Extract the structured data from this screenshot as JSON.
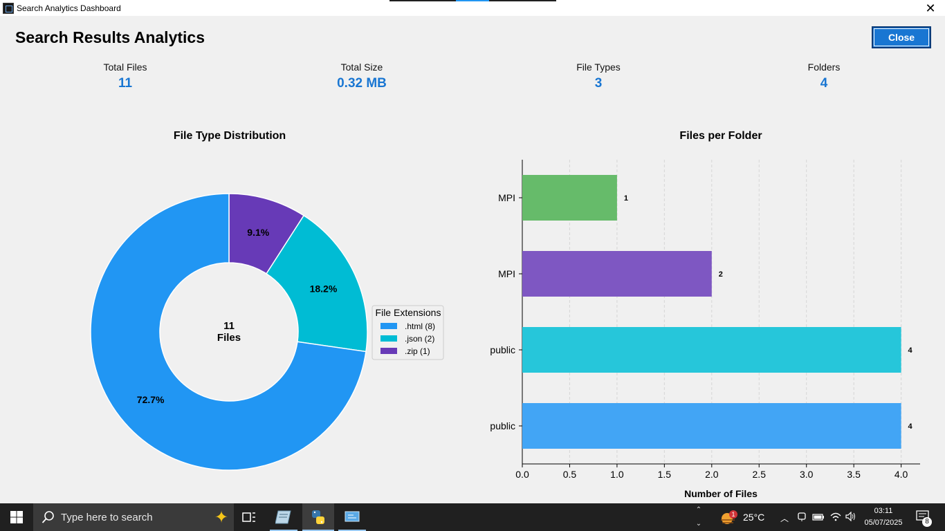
{
  "window": {
    "title": "Search Analytics Dashboard",
    "close_glyph": "✕"
  },
  "header": {
    "title": "Search Results Analytics",
    "close_label": "Close"
  },
  "stats": [
    {
      "label": "Total Files",
      "value": "11"
    },
    {
      "label": "Total Size",
      "value": "0.32 MB"
    },
    {
      "label": "File Types",
      "value": "3"
    },
    {
      "label": "Folders",
      "value": "4"
    }
  ],
  "chart_data": [
    {
      "type": "pie",
      "title": "File Type Distribution",
      "center_label": [
        "11",
        "Files"
      ],
      "legend_title": "File Extensions",
      "legend_placement": "right",
      "slices": [
        {
          "label": ".html (8)",
          "value": 8,
          "pct": "72.7%",
          "color": "#2196f3"
        },
        {
          "label": ".json (2)",
          "value": 2,
          "pct": "18.2%",
          "color": "#00bcd4"
        },
        {
          "label": ".zip (1)",
          "value": 1,
          "pct": "9.1%",
          "color": "#673ab7"
        }
      ]
    },
    {
      "type": "bar",
      "orientation": "horizontal",
      "title": "Files per Folder",
      "xlabel": "Number of Files",
      "ylabel": "",
      "xlim": [
        0,
        4.2
      ],
      "xticks": [
        "0.0",
        "0.5",
        "1.0",
        "1.5",
        "2.0",
        "2.5",
        "3.0",
        "3.5",
        "4.0"
      ],
      "grid": "vertical-dashed",
      "categories": [
        "MPI",
        "MPI",
        "public",
        "public"
      ],
      "values": [
        1,
        2,
        4,
        4
      ],
      "colors": [
        "#66bb6a",
        "#7e57c2",
        "#26c6da",
        "#42a5f5"
      ]
    }
  ],
  "taskbar": {
    "search_placeholder": "Type here to search",
    "temperature": "25°C",
    "weather_badge": "1",
    "time": "03:11",
    "date": "05/07/2025",
    "notification_count": "8",
    "icons": [
      "windows-start-icon",
      "search-icon",
      "copilot-sparkle-icon",
      "task-view-icon",
      "notepad-app-icon",
      "python-app-icon",
      "remote-desktop-app-icon",
      "weather-icon",
      "chevron-up-icon",
      "meet-icon",
      "battery-icon",
      "wifi-icon",
      "volume-icon",
      "notifications-icon"
    ]
  }
}
